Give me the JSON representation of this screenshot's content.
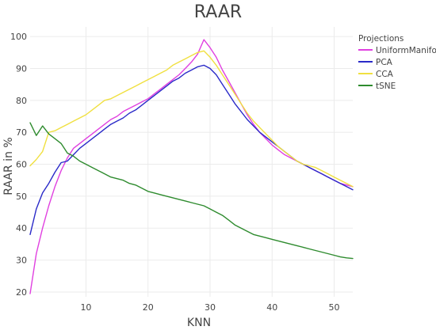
{
  "chart_data": {
    "type": "line",
    "title": "RAAR",
    "xlabel": "KNN",
    "ylabel": "RAAR in %",
    "legend_title": "Projections",
    "legend_position": "top-right",
    "grid": true,
    "xlim": [
      1,
      53
    ],
    "ylim": [
      18.5,
      103
    ],
    "x_ticks": [
      10,
      20,
      30,
      40,
      50
    ],
    "y_ticks": [
      20,
      30,
      40,
      50,
      60,
      70,
      80,
      90,
      100
    ],
    "x": [
      1,
      2,
      3,
      4,
      5,
      6,
      7,
      8,
      9,
      10,
      11,
      12,
      13,
      14,
      15,
      16,
      17,
      18,
      19,
      20,
      21,
      22,
      23,
      24,
      25,
      26,
      27,
      28,
      29,
      30,
      31,
      32,
      33,
      34,
      35,
      36,
      37,
      38,
      39,
      40,
      41,
      42,
      43,
      44,
      45,
      46,
      47,
      48,
      49,
      50,
      51,
      52,
      53
    ],
    "series": [
      {
        "name": "UniformManifold",
        "color": "#e040e0",
        "values": [
          19.5,
          32,
          40,
          47,
          53,
          58,
          62,
          65,
          66.5,
          68,
          69.5,
          71,
          72.5,
          74,
          75,
          76.5,
          77.5,
          78.5,
          79.5,
          80.5,
          82,
          83.5,
          85,
          86.5,
          88,
          90,
          92,
          94.5,
          99,
          96.5,
          93.5,
          89.5,
          86,
          82.5,
          79,
          75.5,
          72.5,
          70,
          68,
          66,
          64.5,
          63,
          62,
          61,
          60,
          59,
          58,
          57,
          56,
          55,
          54,
          53.5,
          53
        ]
      },
      {
        "name": "PCA",
        "color": "#2a2ac8",
        "values": [
          38,
          46,
          51,
          54,
          57.5,
          60.5,
          61,
          63,
          65,
          66.5,
          68,
          69.5,
          71,
          72.5,
          73.5,
          74.5,
          76,
          77,
          78.5,
          80,
          81.5,
          83,
          84.5,
          86,
          87,
          88.5,
          89.5,
          90.5,
          91,
          90,
          88,
          85,
          82,
          79,
          76.5,
          74,
          72,
          70,
          68.5,
          67,
          65.5,
          64,
          62.5,
          61,
          60,
          59,
          58,
          57,
          56,
          55,
          54,
          53,
          52
        ]
      },
      {
        "name": "CCA",
        "color": "#f0e040",
        "values": [
          59.5,
          61.5,
          64,
          70,
          70.5,
          71.5,
          72.5,
          73.5,
          74.5,
          75.5,
          77,
          78.5,
          80,
          80.5,
          81.5,
          82.5,
          83.5,
          84.5,
          85.5,
          86.5,
          87.5,
          88.5,
          89.5,
          91,
          92,
          93,
          94,
          95,
          95.5,
          93.5,
          91,
          88,
          85,
          82,
          79,
          76,
          73.5,
          71.5,
          69.5,
          67.5,
          65.5,
          64,
          62.5,
          61,
          60,
          59.5,
          59,
          58,
          57,
          56,
          55,
          54,
          53
        ]
      },
      {
        "name": "tSNE",
        "color": "#2e8b2e",
        "values": [
          73,
          69,
          72,
          69.5,
          68,
          66.5,
          63.5,
          62.5,
          61,
          60,
          59,
          58,
          57,
          56,
          55.5,
          55,
          54,
          53.5,
          52.5,
          51.5,
          51,
          50.5,
          50,
          49.5,
          49,
          48.5,
          48,
          47.5,
          47,
          46,
          45,
          44,
          42.5,
          41,
          40,
          39,
          38,
          37.5,
          37,
          36.5,
          36,
          35.5,
          35,
          34.5,
          34,
          33.5,
          33,
          32.5,
          32,
          31.5,
          31,
          30.7,
          30.5
        ]
      }
    ]
  }
}
